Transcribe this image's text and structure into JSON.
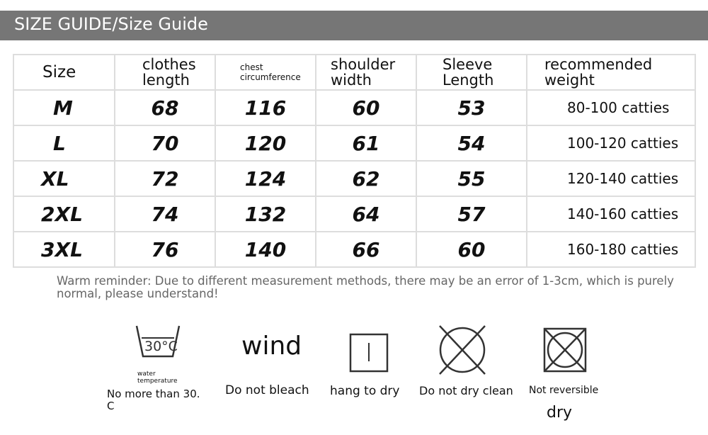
{
  "title": "SIZE GUIDE/Size Guide",
  "table": {
    "headers": [
      "Size",
      "clothes length",
      "chest circumference",
      "shoulder width",
      "Sleeve Length",
      "recommended weight"
    ],
    "rows": [
      [
        "M",
        "68",
        "116",
        "60",
        "53",
        "80-100 catties"
      ],
      [
        "L",
        "70",
        "120",
        "61",
        "54",
        "100-120 catties"
      ],
      [
        "XL",
        "72",
        "124",
        "62",
        "55",
        "120-140 catties"
      ],
      [
        "2XL",
        "74",
        "132",
        "64",
        "57",
        "140-160 catties"
      ],
      [
        "3XL",
        "76",
        "140",
        "66",
        "60",
        "160-180 catties"
      ]
    ]
  },
  "reminder": "Warm reminder: Due to different measurement methods, there may be an error of 1-3cm, which is purely normal, please understand!",
  "care": {
    "wash": {
      "icon": "wash-30-icon",
      "badge": "30°C",
      "note": "water temperature",
      "label": "No more than 30. C"
    },
    "bleach": {
      "icon_text": "wind",
      "label": "Do not bleach"
    },
    "hang": {
      "icon": "hang-dry-icon",
      "label": "hang to dry"
    },
    "dryclean": {
      "icon": "no-dry-clean-icon",
      "label": "Do not dry clean"
    },
    "tumble": {
      "icon": "no-tumble-dry-icon",
      "label": "Not reversible",
      "label2": "dry"
    }
  }
}
